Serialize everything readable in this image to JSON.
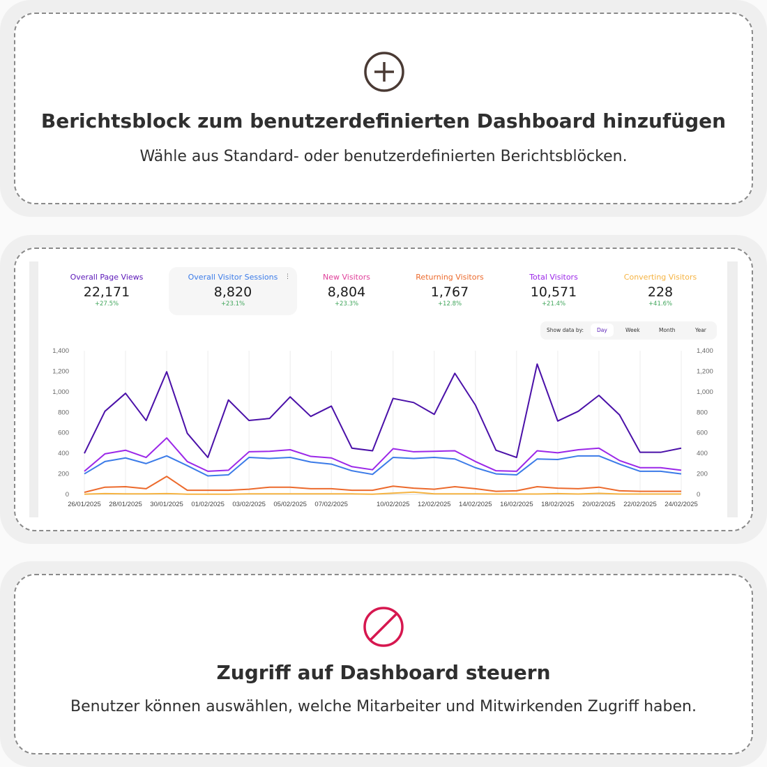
{
  "card_add": {
    "icon": "plus-circle-icon",
    "title": "Berichtsblock zum benutzerdefinierten Dashboard hinzufügen",
    "subtitle": "Wähle aus Standard- oder benutzerdefinierten Berichtsblöcken."
  },
  "card_access": {
    "icon": "prohibited-icon",
    "title": "Zugriff auf Dashboard steuern",
    "subtitle": "Benutzer können auswählen, welche Mitarbeiter und Mitwirkenden Zugriff haben."
  },
  "dashboard": {
    "stats": [
      {
        "label": "Overall Page Views",
        "value": "22,171",
        "change": "+27.5%",
        "color": "#5b17b8"
      },
      {
        "label": "Overall Visitor Sessions",
        "value": "8,820",
        "change": "+23.1%",
        "color": "#3b7be8"
      },
      {
        "label": "New Visitors",
        "value": "8,804",
        "change": "+23.3%",
        "color": "#e0409a"
      },
      {
        "label": "Returning Visitors",
        "value": "1,767",
        "change": "+12.8%",
        "color": "#ec6a2c"
      },
      {
        "label": "Total Visitors",
        "value": "10,571",
        "change": "+21.4%",
        "color": "#9b27e8"
      },
      {
        "label": "Converting Visitors",
        "value": "228",
        "change": "+41.6%",
        "color": "#f5b342"
      }
    ],
    "show_by": {
      "label": "Show data by:",
      "options": [
        "Day",
        "Week",
        "Month",
        "Year"
      ],
      "selected": "Day"
    }
  },
  "chart_data": {
    "type": "line",
    "x": [
      "26/01/2025",
      "27/01/2025",
      "28/01/2025",
      "29/01/2025",
      "30/01/2025",
      "31/01/2025",
      "01/02/2025",
      "02/02/2025",
      "03/02/2025",
      "04/02/2025",
      "05/02/2025",
      "06/02/2025",
      "07/02/2025",
      "08/02/2025",
      "09/02/2025",
      "10/02/2025",
      "11/02/2025",
      "12/02/2025",
      "13/02/2025",
      "14/02/2025",
      "15/02/2025",
      "16/02/2025",
      "17/02/2025",
      "18/02/2025",
      "19/02/2025",
      "20/02/2025",
      "21/02/2025",
      "22/02/2025",
      "23/02/2025",
      "24/02/2025"
    ],
    "x_tick_labels": [
      "26/01/2025",
      "28/01/2025",
      "30/01/2025",
      "01/02/2025",
      "03/02/2025",
      "05/02/2025",
      "07/02/2025",
      "10/02/2025",
      "12/02/2025",
      "14/02/2025",
      "16/02/2025",
      "18/02/2025",
      "20/02/2025",
      "22/02/2025",
      "24/02/2025"
    ],
    "y_ticks": [
      "0",
      "200",
      "400",
      "600",
      "800",
      "1,000",
      "1,200",
      "1,400"
    ],
    "ylim": [
      0,
      1400
    ],
    "grid": "vertical",
    "series": [
      {
        "name": "Overall Page Views",
        "color": "#4a10a8",
        "values": [
          400,
          810,
          985,
          720,
          1195,
          595,
          360,
          920,
          720,
          740,
          950,
          760,
          860,
          450,
          425,
          935,
          895,
          780,
          1180,
          870,
          430,
          360,
          1270,
          715,
          810,
          965,
          775,
          410,
          410,
          450
        ]
      },
      {
        "name": "Total Visitors",
        "color": "#9b27e8",
        "values": [
          225,
          395,
          430,
          360,
          550,
          320,
          225,
          235,
          415,
          420,
          435,
          370,
          355,
          270,
          240,
          445,
          415,
          420,
          425,
          320,
          230,
          225,
          425,
          405,
          435,
          450,
          330,
          260,
          260,
          235
        ]
      },
      {
        "name": "Overall Visitor Sessions",
        "color": "#3b7be8",
        "values": [
          200,
          320,
          355,
          300,
          375,
          280,
          180,
          190,
          360,
          350,
          360,
          315,
          295,
          230,
          195,
          360,
          350,
          360,
          345,
          260,
          200,
          190,
          345,
          340,
          375,
          375,
          295,
          225,
          225,
          200
        ]
      },
      {
        "name": "Returning Visitors",
        "color": "#ec6a2c",
        "values": [
          20,
          70,
          75,
          55,
          175,
          40,
          40,
          40,
          50,
          70,
          70,
          55,
          55,
          40,
          40,
          80,
          60,
          50,
          75,
          55,
          30,
          35,
          75,
          60,
          55,
          70,
          35,
          30,
          30,
          30
        ]
      },
      {
        "name": "Converting Visitors",
        "color": "#f5b342",
        "values": [
          2,
          8,
          5,
          5,
          8,
          2,
          2,
          2,
          5,
          5,
          5,
          5,
          5,
          5,
          2,
          12,
          22,
          5,
          5,
          5,
          3,
          3,
          3,
          8,
          3,
          10,
          3,
          3,
          3,
          3
        ]
      }
    ]
  }
}
